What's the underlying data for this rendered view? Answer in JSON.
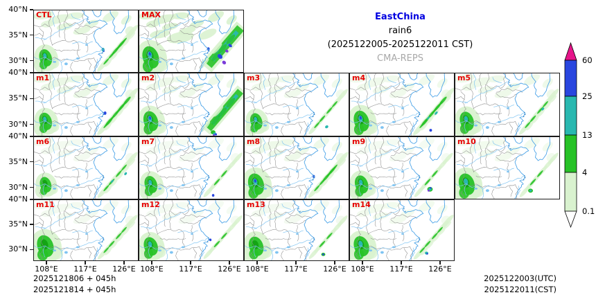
{
  "header": {
    "region": "EastChina",
    "variable": "rain6",
    "valid_period": "(2025122005-2025122011 CST)",
    "model": "CMA-REPS"
  },
  "panels": [
    {
      "label": "CTL"
    },
    {
      "label": "MAX"
    },
    {
      "label": "m1"
    },
    {
      "label": "m2"
    },
    {
      "label": "m3"
    },
    {
      "label": "m4"
    },
    {
      "label": "m5"
    },
    {
      "label": "m6"
    },
    {
      "label": "m7"
    },
    {
      "label": "m8"
    },
    {
      "label": "m9"
    },
    {
      "label": "m10"
    },
    {
      "label": "m11"
    },
    {
      "label": "m12"
    },
    {
      "label": "m13"
    },
    {
      "label": "m14"
    }
  ],
  "axes": {
    "lat_ticks": [
      "40°N",
      "35°N",
      "30°N"
    ],
    "lon_ticks": [
      "108°E",
      "117°E",
      "126°E"
    ]
  },
  "colorbar": {
    "tick_labels": [
      "60",
      "25",
      "13",
      "4",
      "0.1"
    ],
    "segment_colors": [
      "#2946df",
      "#29b8b0",
      "#27c227",
      "#d9f2cf"
    ],
    "over_color": "#e6158a",
    "under_color": "#ffffff"
  },
  "footer": {
    "init_lines": [
      "2025121806 + 045h",
      "2025121814 + 045h"
    ],
    "valid_lines": [
      "2025122003(UTC)",
      "2025122011(CST)"
    ]
  },
  "colors": {
    "panel_label": "#e60000",
    "region_title": "#0000e0",
    "model_gray": "#a9a9a9",
    "rain_light": "#d9f2cf",
    "rain_green": "#27c227",
    "rain_green_dark": "#12a012",
    "rain_teal": "#29b8b0",
    "rain_blue": "#2946df",
    "rain_purple": "#7a3bd9",
    "boundary_gray": "#8a8a8a",
    "river_blue": "#7fc4f2",
    "coast_blue": "#4aa3e8"
  }
}
